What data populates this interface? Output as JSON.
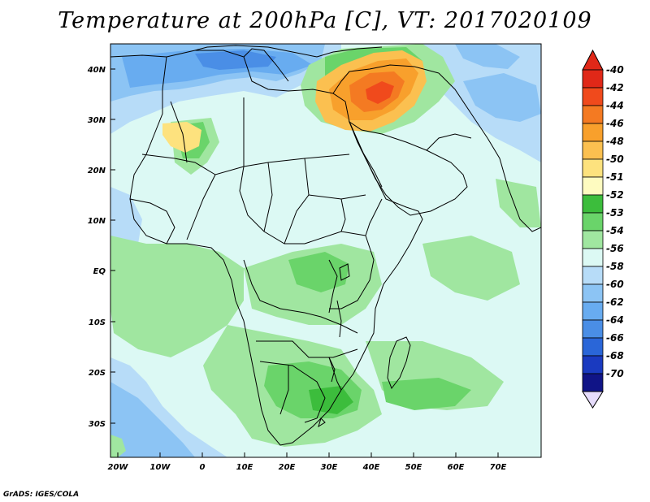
{
  "title": "Temperature at 200hPa [C], VT: 2017020109",
  "footer": "GrADS: IGES/COLA",
  "lat_labels": [
    "40N",
    "30N",
    "20N",
    "10N",
    "EQ",
    "10S",
    "20S",
    "30S"
  ],
  "lon_labels": [
    "20W",
    "10W",
    "0",
    "10E",
    "20E",
    "30E",
    "40E",
    "50E",
    "60E",
    "70E"
  ],
  "legend": {
    "labels": [
      "-40",
      "-42",
      "-44",
      "-46",
      "-48",
      "-50",
      "-51",
      "-52",
      "-53",
      "-54",
      "-56",
      "-58",
      "-60",
      "-62",
      "-64",
      "-66",
      "-68",
      "-70"
    ],
    "colors": [
      "#e02818",
      "#f04a1c",
      "#f47a22",
      "#f8a02c",
      "#fbc050",
      "#fde27e",
      "#fefbc0",
      "#3cbd3c",
      "#6ad46a",
      "#a0e6a0",
      "#dcf9f4",
      "#b7dcf8",
      "#8cc4f4",
      "#68acf0",
      "#4a8ee6",
      "#2a66d8",
      "#1a3ac0",
      "#101487"
    ],
    "top_arrow_color": "#e02818",
    "bottom_arrow_color": "#e6dcfb"
  }
}
